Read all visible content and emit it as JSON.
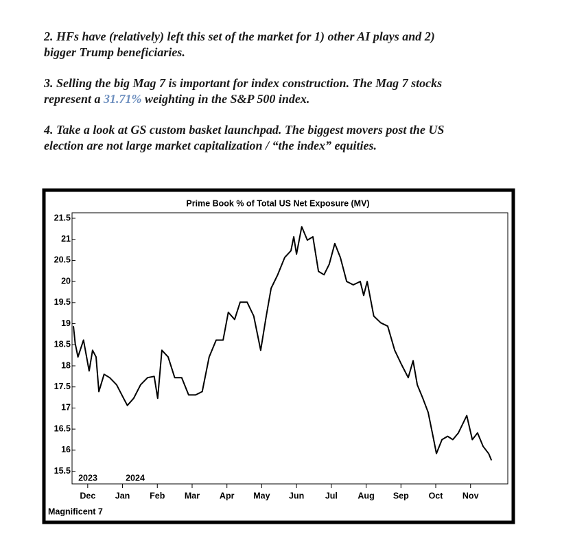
{
  "document": {
    "paragraphs": [
      {
        "lines": [
          [
            "2. HFs have (relatively) left this set of the market for 1) other AI plays and 2)"
          ],
          [
            "bigger Trump beneficiaries."
          ]
        ]
      },
      {
        "lines": [
          [
            "3. Selling the big Mag 7 is important for index construction. The Mag 7 stocks"
          ],
          [
            "represent a ",
            "31.71%",
            " weighting in the S&P 500 index."
          ]
        ]
      },
      {
        "lines": [
          [
            "4. Take a look at GS custom basket launchpad. The biggest movers post the US"
          ],
          [
            "election are not large market capitalization / “the index” equities."
          ]
        ]
      }
    ]
  },
  "chart_data": {
    "type": "line",
    "title": "Prime Book % of Total US Net Exposure (MV)",
    "footer": "Magnificent 7",
    "annotations": [
      "2023",
      "2024"
    ],
    "xlim": [
      -0.45,
      12.07
    ],
    "ylim": [
      15.2,
      21.63
    ],
    "xticks": [
      {
        "value": 0,
        "label": "Dec"
      },
      {
        "value": 1,
        "label": "Jan"
      },
      {
        "value": 2,
        "label": "Feb"
      },
      {
        "value": 3,
        "label": "Mar"
      },
      {
        "value": 4,
        "label": "Apr"
      },
      {
        "value": 5,
        "label": "May"
      },
      {
        "value": 6,
        "label": "Jun"
      },
      {
        "value": 7,
        "label": "Jul"
      },
      {
        "value": 8,
        "label": "Aug"
      },
      {
        "value": 9,
        "label": "Sep"
      },
      {
        "value": 10,
        "label": "Oct"
      },
      {
        "value": 11,
        "label": "Nov"
      }
    ],
    "yticks": [
      21.5,
      21,
      20.5,
      20,
      19.5,
      19,
      18.5,
      18,
      17.5,
      17,
      16.5,
      16,
      15.5
    ],
    "grid": false,
    "series": [
      {
        "color": "#000000",
        "x": [
          -0.41,
          -0.36,
          -0.28,
          -0.12,
          0.04,
          0.14,
          0.24,
          0.32,
          0.47,
          0.63,
          0.83,
          1.03,
          1.14,
          1.32,
          1.52,
          1.72,
          1.91,
          2.01,
          2.13,
          2.31,
          2.5,
          2.7,
          2.9,
          3.1,
          3.29,
          3.49,
          3.69,
          3.89,
          4.04,
          4.22,
          4.38,
          4.58,
          4.77,
          4.97,
          5.13,
          5.27,
          5.46,
          5.66,
          5.84,
          5.92,
          6.0,
          6.15,
          6.31,
          6.47,
          6.63,
          6.79,
          6.94,
          7.1,
          7.26,
          7.44,
          7.63,
          7.83,
          7.93,
          8.03,
          8.22,
          8.42,
          8.62,
          8.82,
          9.01,
          9.21,
          9.35,
          9.47,
          9.63,
          9.78,
          9.94,
          10.02,
          10.18,
          10.34,
          10.49,
          10.65,
          10.89,
          11.05,
          11.2,
          11.36,
          11.52,
          11.6
        ],
        "values": [
          18.94,
          18.53,
          18.21,
          18.61,
          17.88,
          18.37,
          18.21,
          17.39,
          17.8,
          17.72,
          17.55,
          17.23,
          17.06,
          17.23,
          17.55,
          17.72,
          17.75,
          17.23,
          18.37,
          18.21,
          17.72,
          17.72,
          17.31,
          17.31,
          17.39,
          18.21,
          18.61,
          18.61,
          19.27,
          19.1,
          19.51,
          19.51,
          19.18,
          18.37,
          19.18,
          19.84,
          20.16,
          20.57,
          20.73,
          21.06,
          20.65,
          21.3,
          20.98,
          21.06,
          20.24,
          20.16,
          20.41,
          20.9,
          20.57,
          20.0,
          19.92,
          20.0,
          19.67,
          20.0,
          19.18,
          19.02,
          18.94,
          18.37,
          18.04,
          17.72,
          18.12,
          17.55,
          17.23,
          16.9,
          16.25,
          15.92,
          16.25,
          16.33,
          16.25,
          16.41,
          16.82,
          16.25,
          16.41,
          16.09,
          15.92,
          15.76
        ]
      }
    ]
  }
}
